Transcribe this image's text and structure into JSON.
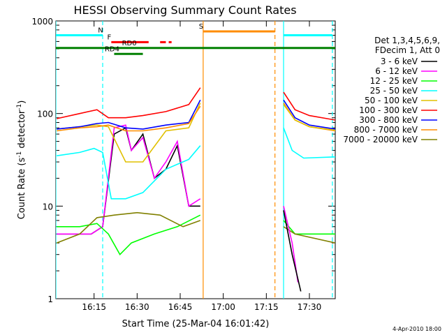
{
  "chart_data": {
    "type": "line",
    "title": "HESSI Observing Summary Count Rates",
    "xlabel": "Start Time (25-Mar-04 16:01:42)",
    "ylabel_main": "Count Rate (s",
    "ylabel_sup1": "-1",
    "ylabel_mid": " detector",
    "ylabel_sup2": "-1",
    "ylabel_end": ")",
    "yscale": "log",
    "ylim": [
      1,
      1000
    ],
    "xlim": [
      "16:01:42",
      "17:39:00"
    ],
    "x_ticks": [
      "16:15",
      "16:30",
      "16:45",
      "17:00",
      "17:15",
      "17:30"
    ],
    "y_ticks": [
      "1",
      "10",
      "100",
      "1000"
    ],
    "legend_header": [
      "Det 1,3,4,5,6,9,",
      "FDecim 1, Att 0"
    ],
    "legend_position": "right",
    "timestamp": "4-Apr-2010 18:00",
    "series": [
      {
        "name": "3 - 6 keV",
        "color": "#000000",
        "x": [
          "16:02",
          "16:14",
          "16:18",
          "16:22",
          "16:26",
          "16:28",
          "16:32",
          "16:36",
          "16:40",
          "16:44",
          "16:48",
          "16:52"
        ],
        "values": [
          5,
          5,
          6,
          60,
          70,
          40,
          60,
          20,
          25,
          45,
          10,
          10
        ]
      },
      {
        "name": "6 - 12 keV",
        "color": "#ff00ff",
        "x": [
          "16:02",
          "16:14",
          "16:18",
          "16:22",
          "16:26",
          "16:28",
          "16:32",
          "16:36",
          "16:40",
          "16:44",
          "16:48",
          "16:52"
        ],
        "values": [
          5,
          5,
          6,
          70,
          75,
          40,
          55,
          20,
          30,
          50,
          10,
          12
        ]
      },
      {
        "name": "12 - 25 keV",
        "color": "#00ff00",
        "x": [
          "16:02",
          "16:10",
          "16:16",
          "16:20",
          "16:24",
          "16:28",
          "16:36",
          "16:44",
          "16:52"
        ],
        "values": [
          6,
          6,
          6.5,
          5,
          3,
          4,
          5,
          6,
          8
        ]
      },
      {
        "name": "25 - 50 keV",
        "color": "#00ffff",
        "x": [
          "16:02",
          "16:10",
          "16:15",
          "16:18",
          "16:21",
          "16:26",
          "16:32",
          "16:40",
          "16:48",
          "16:52"
        ],
        "values": [
          35,
          38,
          42,
          38,
          12,
          12,
          14,
          25,
          32,
          45
        ]
      },
      {
        "name": "50 - 100 keV",
        "color": "#e0c000",
        "x": [
          "16:02",
          "16:10",
          "16:16",
          "16:20",
          "16:26",
          "16:32",
          "16:40",
          "16:48",
          "16:52"
        ],
        "values": [
          68,
          72,
          75,
          72,
          30,
          30,
          65,
          70,
          130
        ]
      },
      {
        "name": "100 - 300 keV",
        "color": "#ff0000",
        "x": [
          "16:02",
          "16:10",
          "16:16",
          "16:20",
          "16:26",
          "16:32",
          "16:40",
          "16:48",
          "16:52"
        ],
        "values": [
          88,
          100,
          110,
          90,
          90,
          95,
          105,
          125,
          190
        ]
      },
      {
        "name": "300 - 800 keV",
        "color": "#0000ff",
        "x": [
          "16:02",
          "16:10",
          "16:16",
          "16:20",
          "16:26",
          "16:32",
          "16:40",
          "16:48",
          "16:52"
        ],
        "values": [
          68,
          72,
          78,
          80,
          70,
          68,
          75,
          80,
          140
        ]
      },
      {
        "name": "800 - 7000 keV",
        "color": "#ff8c00",
        "x": [
          "16:02",
          "16:10",
          "16:16",
          "16:20",
          "16:26",
          "16:32",
          "16:40",
          "16:48",
          "16:52"
        ],
        "values": [
          65,
          70,
          72,
          75,
          65,
          65,
          70,
          78,
          120
        ]
      },
      {
        "name": "7000 - 20000 keV",
        "color": "#808000",
        "x": [
          "16:02",
          "16:10",
          "16:16",
          "16:22",
          "16:30",
          "16:38",
          "16:46",
          "16:52"
        ],
        "values": [
          4,
          5,
          7.5,
          8,
          8.5,
          8,
          6,
          7
        ]
      }
    ],
    "series_after_gap": [
      {
        "color": "#ff0000",
        "x": [
          "17:21",
          "17:25",
          "17:30",
          "17:39"
        ],
        "values": [
          170,
          110,
          95,
          85
        ]
      },
      {
        "color": "#0000ff",
        "x": [
          "17:21",
          "17:25",
          "17:30",
          "17:39"
        ],
        "values": [
          140,
          90,
          75,
          68
        ]
      },
      {
        "color": "#ff8c00",
        "x": [
          "17:21",
          "17:25",
          "17:30",
          "17:39"
        ],
        "values": [
          130,
          85,
          72,
          65
        ]
      },
      {
        "color": "#e0c000",
        "x": [
          "17:21",
          "17:25",
          "17:30",
          "17:39"
        ],
        "values": [
          125,
          85,
          72,
          66
        ]
      },
      {
        "color": "#00ffff",
        "x": [
          "17:21",
          "17:24",
          "17:28",
          "17:39"
        ],
        "values": [
          70,
          40,
          33,
          34
        ]
      },
      {
        "color": "#00ff00",
        "x": [
          "17:21",
          "17:25",
          "17:39"
        ],
        "values": [
          7,
          5,
          5
        ]
      },
      {
        "color": "#808000",
        "x": [
          "17:21",
          "17:25",
          "17:39"
        ],
        "values": [
          6,
          5,
          4
        ]
      },
      {
        "color": "#ff00ff",
        "x": [
          "17:21",
          "17:24",
          "17:26"
        ],
        "values": [
          10,
          4,
          1.5
        ]
      },
      {
        "color": "#000000",
        "x": [
          "17:21",
          "17:24",
          "17:27"
        ],
        "values": [
          9,
          3,
          1.2
        ]
      }
    ],
    "vertical_markers": [
      {
        "x": "16:01:42",
        "color": "#00ffff",
        "style": "solid"
      },
      {
        "x": "16:18",
        "color": "#00ffff",
        "style": "dashed"
      },
      {
        "x": "16:53",
        "color": "#ff8c00",
        "style": "solid"
      },
      {
        "x": "17:18",
        "color": "#ff8c00",
        "style": "dashed"
      },
      {
        "x": "17:21",
        "color": "#00ffff",
        "style": "solid"
      },
      {
        "x": "17:38",
        "color": "#00ffff",
        "style": "dashed"
      }
    ],
    "flag_bars": [
      {
        "label": "N",
        "color": "#00ffff",
        "segments": [
          [
            "16:01:42",
            "16:18"
          ],
          [
            "17:21",
            "17:38"
          ]
        ],
        "level": 700,
        "label_x": "16:18"
      },
      {
        "label": "S",
        "color": "#ff8c00",
        "segments": [
          [
            "16:53",
            "17:18"
          ]
        ],
        "level": 770,
        "label_x": "16:53"
      },
      {
        "label": "F",
        "color": "#ff0000",
        "segments": [
          [
            "16:21",
            "16:34"
          ],
          [
            "16:38",
            "16:40"
          ],
          [
            "16:41",
            "16:42"
          ]
        ],
        "level": 590,
        "label_x": "16:21"
      },
      {
        "label": "RD0",
        "color": "#008000",
        "segments": [
          [
            "16:01:42",
            "17:39"
          ]
        ],
        "level": 510,
        "label_x": "16:28"
      },
      {
        "label": "RD4",
        "color": "#008000",
        "segments": [
          [
            "16:22",
            "16:32"
          ]
        ],
        "level": 440,
        "label_x": "16:22"
      }
    ]
  }
}
